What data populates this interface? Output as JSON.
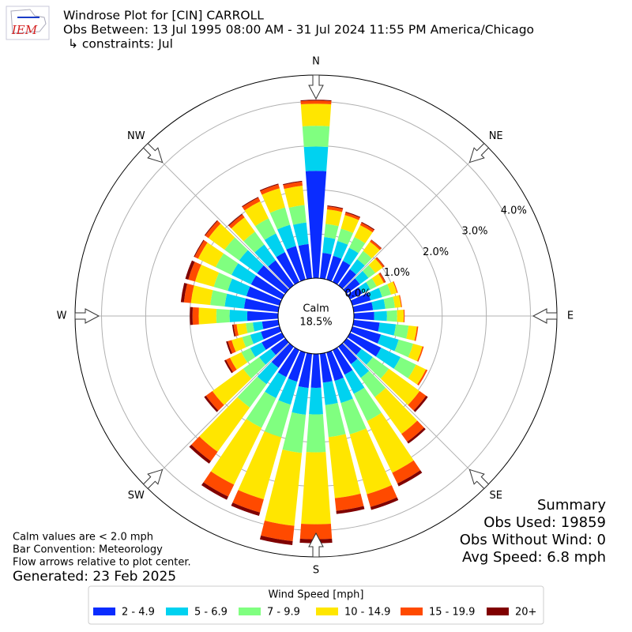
{
  "chart_data": {
    "type": "windrose",
    "title": "Windrose Plot for [CIN] CARROLL",
    "subtitle": "Obs Between: 13 Jul 1995 08:00 AM - 31 Jul 2024 11:55 PM America/Chicago",
    "constraints": "↳ constraints: Jul",
    "logo_text": "IEM",
    "x": [
      0,
      10,
      20,
      30,
      40,
      50,
      60,
      70,
      80,
      90,
      100,
      110,
      120,
      130,
      140,
      150,
      160,
      170,
      180,
      190,
      200,
      210,
      220,
      230,
      240,
      250,
      260,
      270,
      280,
      290,
      300,
      310,
      320,
      330,
      340,
      350
    ],
    "xticks": [
      {
        "value": 0,
        "label": "N"
      },
      {
        "value": 45,
        "label": "NE"
      },
      {
        "value": 90,
        "label": "E"
      },
      {
        "value": 135,
        "label": "SE"
      },
      {
        "value": 180,
        "label": "S"
      },
      {
        "value": 225,
        "label": "SW"
      },
      {
        "value": 270,
        "label": "W"
      },
      {
        "value": 315,
        "label": "NW"
      }
    ],
    "ylim": [
      0,
      4.6
    ],
    "yticks": [
      {
        "value": 0,
        "label": "0.0%"
      },
      {
        "value": 1,
        "label": "1.0%"
      },
      {
        "value": 2,
        "label": "2.0%"
      },
      {
        "value": 3,
        "label": "3.0%"
      },
      {
        "value": 4,
        "label": "4.0%"
      }
    ],
    "grid": true,
    "calm": {
      "label": "Calm",
      "value": 18.5,
      "value_label": "18.5%"
    },
    "legend_title": "Wind Speed [mph]",
    "series": [
      {
        "name": "2 - 4.9",
        "color": "#0a2cff",
        "values": [
          2.43,
          0.58,
          0.56,
          0.53,
          0.45,
          0.37,
          0.31,
          0.43,
          0.44,
          0.46,
          0.59,
          0.67,
          0.78,
          0.41,
          0.49,
          0.62,
          0.67,
          0.66,
          0.77,
          0.78,
          0.69,
          0.68,
          0.59,
          0.41,
          0.51,
          0.44,
          0.37,
          0.7,
          0.78,
          0.78,
          0.78,
          0.79,
          0.7,
          0.75,
          0.79,
          0.78
        ]
      },
      {
        "name": "5 - 6.9",
        "color": "#00d2f0",
        "values": [
          0.55,
          0.36,
          0.35,
          0.33,
          0.28,
          0.24,
          0.2,
          0.27,
          0.28,
          0.29,
          0.37,
          0.42,
          0.49,
          0.32,
          0.38,
          0.48,
          0.52,
          0.51,
          0.6,
          0.61,
          0.54,
          0.53,
          0.46,
          0.32,
          0.29,
          0.25,
          0.21,
          0.4,
          0.44,
          0.44,
          0.49,
          0.5,
          0.44,
          0.47,
          0.5,
          0.49
        ]
      },
      {
        "name": "7 - 9.9",
        "color": "#80ff80",
        "values": [
          0.47,
          0.3,
          0.29,
          0.27,
          0.23,
          0.19,
          0.16,
          0.21,
          0.22,
          0.23,
          0.29,
          0.34,
          0.39,
          0.45,
          0.54,
          0.69,
          0.74,
          0.73,
          0.86,
          0.87,
          0.77,
          0.75,
          0.65,
          0.45,
          0.22,
          0.19,
          0.16,
          0.3,
          0.33,
          0.33,
          0.4,
          0.41,
          0.36,
          0.38,
          0.41,
          0.4
        ]
      },
      {
        "name": "10 - 14.9",
        "color": "#ffe600",
        "values": [
          0.5,
          0.33,
          0.32,
          0.3,
          0.26,
          0.21,
          0.18,
          0.14,
          0.14,
          0.15,
          0.19,
          0.22,
          0.25,
          0.86,
          1.03,
          1.3,
          1.41,
          1.39,
          1.63,
          1.66,
          1.46,
          1.43,
          1.24,
          0.86,
          0.29,
          0.25,
          0.21,
          0.4,
          0.44,
          0.44,
          0.44,
          0.45,
          0.4,
          0.43,
          0.45,
          0.44
        ]
      },
      {
        "name": "15 - 19.9",
        "color": "#ff4a00",
        "values": [
          0.07,
          0.07,
          0.06,
          0.06,
          0.05,
          0.04,
          0.04,
          0.02,
          0.02,
          0.02,
          0.03,
          0.03,
          0.04,
          0.18,
          0.22,
          0.27,
          0.3,
          0.29,
          0.34,
          0.35,
          0.31,
          0.3,
          0.26,
          0.18,
          0.1,
          0.09,
          0.07,
          0.14,
          0.16,
          0.16,
          0.09,
          0.09,
          0.08,
          0.09,
          0.09,
          0.09
        ]
      },
      {
        "name": "20+",
        "color": "#800000",
        "values": [
          0.02,
          0.02,
          0.02,
          0.02,
          0.01,
          0.01,
          0.01,
          0,
          0,
          0,
          0,
          0,
          0,
          0.05,
          0.05,
          0.07,
          0.07,
          0.07,
          0.09,
          0.09,
          0.08,
          0.08,
          0.07,
          0.05,
          0.04,
          0.04,
          0.03,
          0.06,
          0.07,
          0.07,
          0.02,
          0.02,
          0.02,
          0.02,
          0.02,
          0.02
        ]
      }
    ],
    "notes": [
      "Calm values are < 2.0 mph",
      "Bar Convention: Meteorology",
      "Flow arrows relative to plot center."
    ],
    "generated": "Generated: 23 Feb 2025",
    "summary": [
      "Summary",
      "Obs Used: 19859",
      "Obs Without Wind: 0",
      "Avg Speed: 6.8 mph"
    ]
  }
}
